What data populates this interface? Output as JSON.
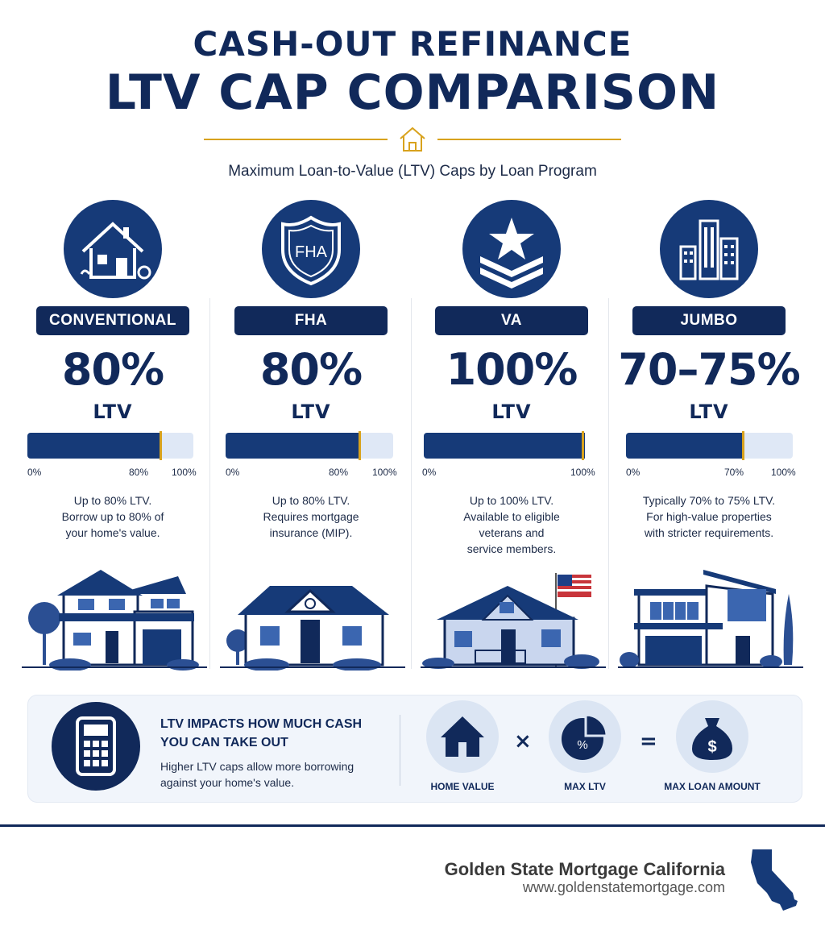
{
  "header": {
    "title_line1": "CASH-OUT REFINANCE",
    "title_line2": "LTV CAP COMPARISON",
    "subtitle": "Maximum Loan-to-Value (LTV) Caps by Loan Program"
  },
  "programs": [
    {
      "name": "CONVENTIONAL",
      "cap": "80%",
      "ltv_label": "LTV",
      "fill_fraction": 0.8,
      "tick_start": "0%",
      "tick_marker": "80%",
      "tick_end": "100%",
      "desc": [
        "Up to 80% LTV.",
        "Borrow up to 80% of",
        "your home's value."
      ],
      "icon": "house-icon"
    },
    {
      "name": "FHA",
      "cap": "80%",
      "ltv_label": "LTV",
      "fill_fraction": 0.8,
      "tick_start": "0%",
      "tick_marker": "80%",
      "tick_end": "100%",
      "desc": [
        "Up to 80% LTV.",
        "Requires mortgage",
        "insurance (MIP)."
      ],
      "icon": "fha-shield-icon",
      "icon_text": "FHA"
    },
    {
      "name": "VA",
      "cap": "100%",
      "ltv_label": "LTV",
      "fill_fraction": 1.0,
      "tick_start": "0%",
      "tick_end": "100%",
      "desc": [
        "Up to 100% LTV.",
        "Available to eligible",
        "veterans and",
        "service members."
      ],
      "icon": "star-chevron-icon"
    },
    {
      "name": "JUMBO",
      "cap": "70–75%",
      "ltv_label": "LTV",
      "fill_fraction": 0.7,
      "tick_start": "0%",
      "tick_marker": "70%",
      "tick_end": "100%",
      "desc": [
        "Typically 70% to 75% LTV.",
        "For high-value properties",
        "with stricter requirements."
      ],
      "icon": "skyscraper-icon"
    }
  ],
  "impact": {
    "heading_line1": "LTV IMPACTS HOW MUCH CASH",
    "heading_line2": "YOU CAN TAKE OUT",
    "body_line1": "Higher LTV caps allow more borrowing",
    "body_line2": "against your home's value.",
    "formula": {
      "home_value": "HOME VALUE",
      "times": "×",
      "max_ltv": "MAX LTV",
      "pie_text": "%",
      "equals": "=",
      "max_loan": "MAX LOAN AMOUNT",
      "bag_text": "$"
    }
  },
  "footer": {
    "brand": "Golden State Mortgage California",
    "url": "www.goldenstatemortgage.com"
  },
  "colors": {
    "navy": "#11295a",
    "accent_gold": "#d8a21d",
    "track_light": "#dfe8f6",
    "panel_bg": "#f1f5fb"
  }
}
